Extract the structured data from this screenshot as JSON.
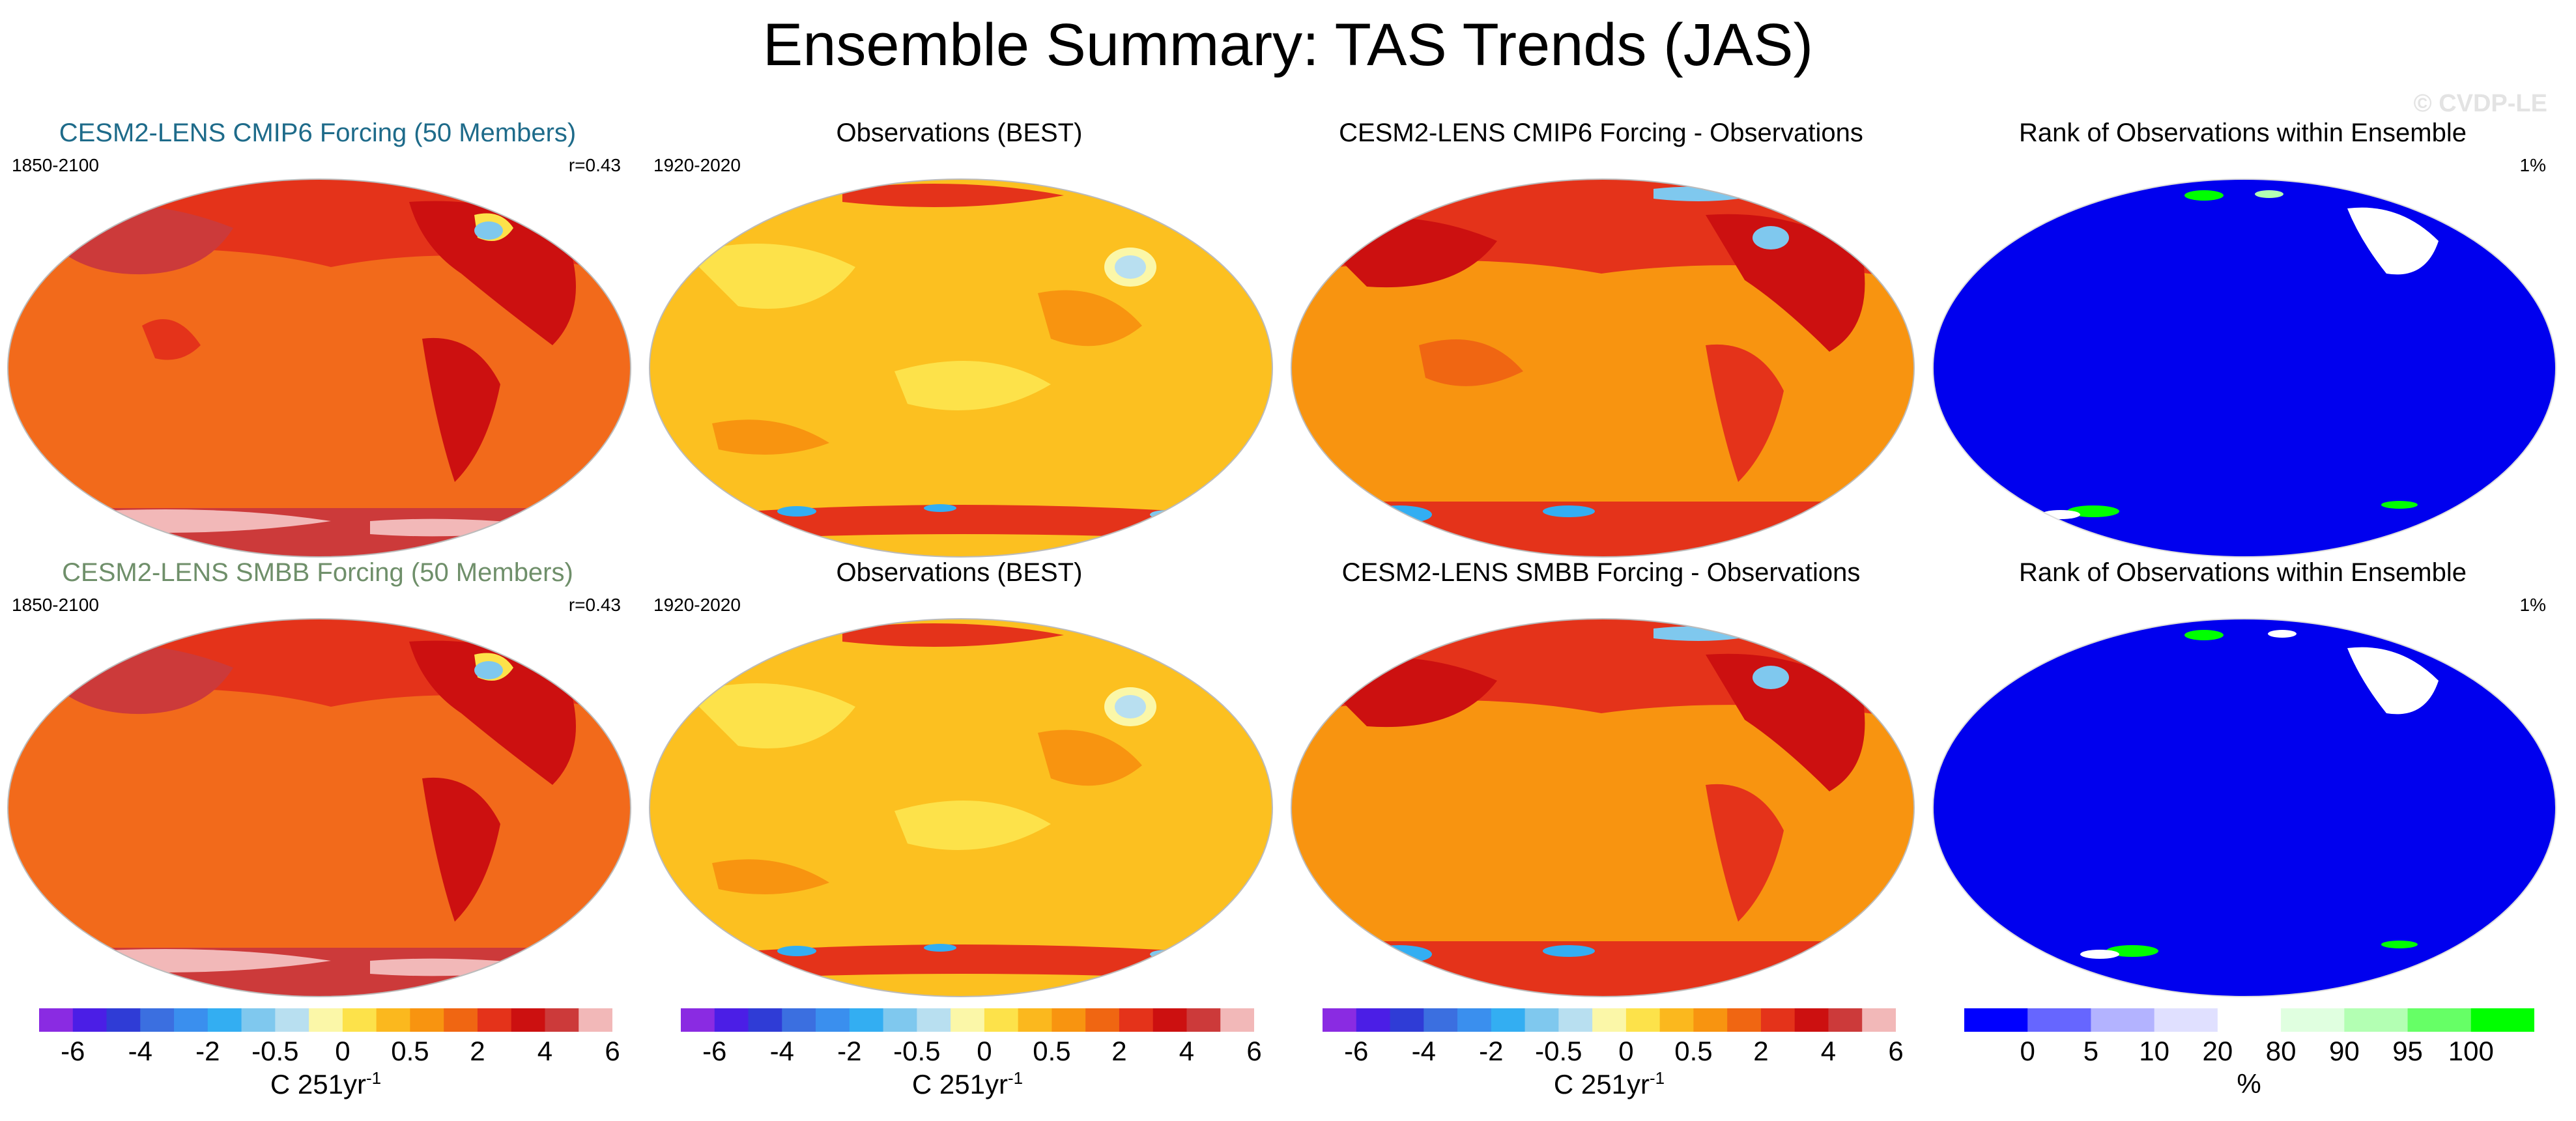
{
  "title": "Ensemble Summary: TAS Trends (JAS)",
  "watermark": "© CVDP-LE",
  "colors": {
    "model_cmip6_title": "#1e6b8a",
    "model_smbb_title": "#6f8f6a",
    "trend_scale": [
      "#8a2be2",
      "#4b1ee6",
      "#2f3cd6",
      "#3b6fe0",
      "#3a8fee",
      "#33aef2",
      "#7fc8ee",
      "#b8dff0",
      "#fbf7a8",
      "#fde24a",
      "#fbb81e",
      "#f89410",
      "#f06612",
      "#e4331a",
      "#cc1010",
      "#cc3a3a",
      "#f2b8b8"
    ],
    "rank_scale": [
      "#0000ff",
      "#6666ff",
      "#b3b3ff",
      "#e0e0ff",
      "#ffffff",
      "#e0ffe0",
      "#b3ffb3",
      "#66ff66",
      "#00ff00"
    ],
    "ocean_model": "#f26a1b",
    "ocean_obs": "#fcc020",
    "rank_base": "#0000ee"
  },
  "panels": {
    "row1": {
      "model": {
        "title": "CESM2-LENS CMIP6 Forcing (50 Members)",
        "period": "1850-2100",
        "corr": "r=0.43"
      },
      "obs": {
        "title": "Observations (BEST)",
        "period": "1920-2020"
      },
      "diff": {
        "title": "CESM2-LENS CMIP6 Forcing - Observations"
      },
      "rank": {
        "title": "Rank of Observations within Ensemble",
        "pct": "1%"
      }
    },
    "row2": {
      "model": {
        "title": "CESM2-LENS SMBB Forcing (50 Members)",
        "period": "1850-2100",
        "corr": "r=0.43"
      },
      "obs": {
        "title": "Observations (BEST)",
        "period": "1920-2020"
      },
      "diff": {
        "title": "CESM2-LENS SMBB Forcing - Observations"
      },
      "rank": {
        "title": "Rank of Observations within Ensemble",
        "pct": "1%"
      }
    }
  },
  "colorbars": {
    "trend": {
      "ticks": [
        "-6",
        "-4",
        "-2",
        "-0.5",
        "0",
        "0.5",
        "2",
        "4",
        "6"
      ],
      "unit": "C 251yr",
      "unit_exp": "-1"
    },
    "rank": {
      "ticks": [
        "0",
        "5",
        "10",
        "20",
        "80",
        "90",
        "95",
        "100"
      ],
      "unit": "%"
    }
  }
}
